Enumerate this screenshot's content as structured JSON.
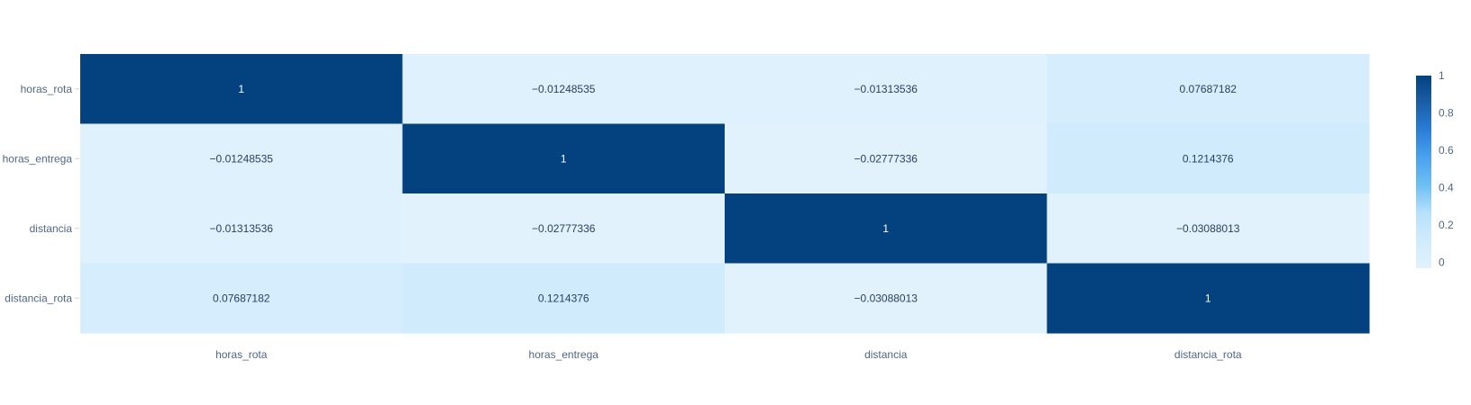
{
  "chart_data": {
    "type": "heatmap",
    "x": [
      "horas_rota",
      "horas_entrega",
      "distancia",
      "distancia_rota"
    ],
    "y": [
      "horas_rota",
      "horas_entrega",
      "distancia",
      "distancia_rota"
    ],
    "z": [
      [
        1,
        -0.01248535,
        -0.01313536,
        0.07687182
      ],
      [
        -0.01248535,
        1,
        -0.02777336,
        0.1214376
      ],
      [
        -0.01313536,
        -0.02777336,
        1,
        -0.03088013
      ],
      [
        0.07687182,
        0.1214376,
        -0.03088013,
        1
      ]
    ],
    "text": [
      [
        "1",
        "−0.01248535",
        "−0.01313536",
        "0.07687182"
      ],
      [
        "−0.01248535",
        "1",
        "−0.02777336",
        "0.1214376"
      ],
      [
        "−0.01313536",
        "−0.02777336",
        "1",
        "−0.03088013"
      ],
      [
        "0.07687182",
        "0.1214376",
        "−0.03088013",
        "1"
      ]
    ],
    "zmin": -0.03088013,
    "zmax": 1,
    "colorscale": [
      "#E1F2FD",
      "#D0EBFC",
      "#B7E1FC",
      "#6FBFF4",
      "#4BA3EE",
      "#2A7ED8",
      "#1B5FA8",
      "#03427F"
    ],
    "colorbar": {
      "ticks": [
        0,
        0.2,
        0.4,
        0.6,
        0.8,
        1
      ],
      "tick_labels": [
        "0",
        "0.2",
        "0.4",
        "0.6",
        "0.8",
        "1"
      ]
    }
  }
}
